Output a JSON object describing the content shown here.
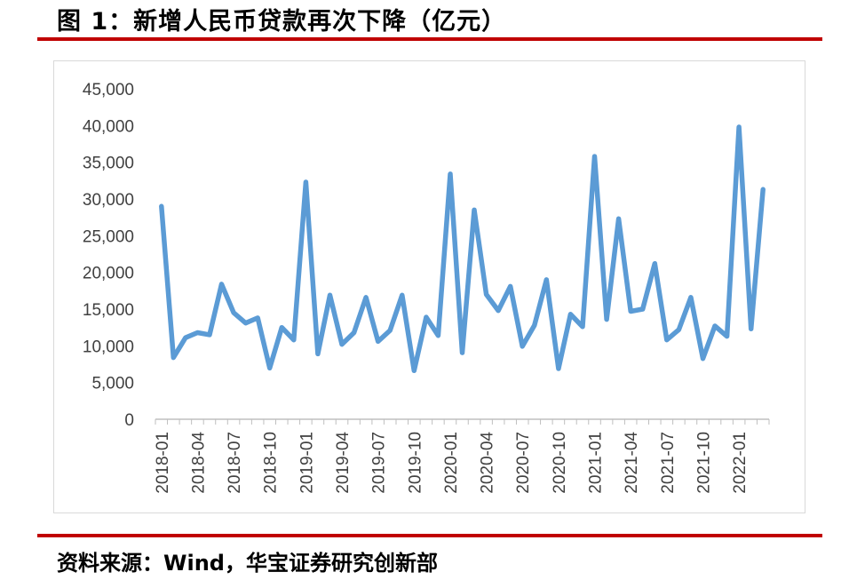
{
  "figure_title": "图 1：新增人民币贷款再次下降（亿元）",
  "source_note": "资料来源：Wind，华宝证券研究创新部",
  "colors": {
    "line": "#5b9bd5",
    "rule": "#c00000",
    "axis": "#bfbfbf",
    "tick_text": "#404040"
  },
  "chart_data": {
    "type": "line",
    "title": "",
    "xlabel": "",
    "ylabel": "",
    "ylim": [
      0,
      45000
    ],
    "yticks": [
      0,
      5000,
      10000,
      15000,
      20000,
      25000,
      30000,
      35000,
      40000,
      45000
    ],
    "ytick_labels": [
      "0",
      "5,000",
      "10,000",
      "15,000",
      "20,000",
      "25,000",
      "30,000",
      "35,000",
      "40,000",
      "45,000"
    ],
    "xtick_labels": [
      "2018-01",
      "2018-04",
      "2018-07",
      "2018-10",
      "2019-01",
      "2019-04",
      "2019-07",
      "2019-10",
      "2020-01",
      "2020-04",
      "2020-07",
      "2020-10",
      "2021-01",
      "2021-04",
      "2021-07",
      "2021-10",
      "2022-01"
    ],
    "xtick_every": 3,
    "grid": false,
    "legend": "none",
    "x": [
      "2018-01",
      "2018-02",
      "2018-03",
      "2018-04",
      "2018-05",
      "2018-06",
      "2018-07",
      "2018-08",
      "2018-09",
      "2018-10",
      "2018-11",
      "2018-12",
      "2019-01",
      "2019-02",
      "2019-03",
      "2019-04",
      "2019-05",
      "2019-06",
      "2019-07",
      "2019-08",
      "2019-09",
      "2019-10",
      "2019-11",
      "2019-12",
      "2020-01",
      "2020-02",
      "2020-03",
      "2020-04",
      "2020-05",
      "2020-06",
      "2020-07",
      "2020-08",
      "2020-09",
      "2020-10",
      "2020-11",
      "2020-12",
      "2021-01",
      "2021-02",
      "2021-03",
      "2021-04",
      "2021-05",
      "2021-06",
      "2021-07",
      "2021-08",
      "2021-09",
      "2021-10",
      "2021-11",
      "2021-12",
      "2022-01",
      "2022-02",
      "2022-03"
    ],
    "series": [
      {
        "values": [
          29000,
          8400,
          11100,
          11800,
          11500,
          18400,
          14500,
          13100,
          13800,
          6970,
          12500,
          10800,
          32300,
          8900,
          16900,
          10200,
          11800,
          16600,
          10600,
          12100,
          16900,
          6613,
          13900,
          11400,
          33400,
          9057,
          28500,
          17000,
          14800,
          18100,
          9927,
          12800,
          19000,
          6898,
          14300,
          12600,
          35800,
          13600,
          27300,
          14700,
          15000,
          21200,
          10800,
          12200,
          16600,
          8262,
          12700,
          11300,
          39800,
          12300,
          31300
        ]
      }
    ]
  }
}
